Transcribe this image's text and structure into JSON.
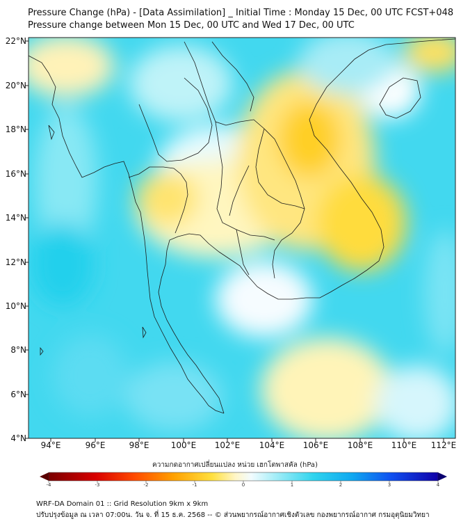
{
  "header": {
    "title_line1": "Pressure Change (hPa) - [Data Assimilation] _ Initial Time : Monday 15 Dec, 00 UTC FCST+048",
    "title_line2": "Pressure change between Mon 15 Dec, 00 UTC and Wed 17 Dec, 00 UTC"
  },
  "map": {
    "lat_labels": [
      "22°N",
      "20°N",
      "18°N",
      "16°N",
      "14°N",
      "12°N",
      "10°N",
      "8°N",
      "6°N",
      "4°N"
    ],
    "lon_labels": [
      "94°E",
      "96°E",
      "98°E",
      "100°E",
      "102°E",
      "104°E",
      "106°E",
      "108°E",
      "110°E",
      "112°E"
    ],
    "colors": {
      "pressure_rise": "#2fd8f0",
      "pressure_rise_strong": "#00c8ec",
      "neutral": "#eafaff",
      "pressure_fall": "#fff0a0",
      "pressure_fall_strong": "#ffd420",
      "border_line": "#1a1a1a"
    }
  },
  "colorbar": {
    "title": "ความกดอากาศเปลี่ยนแปลง หน่วย เฮกโตพาสคัล (hPa)",
    "tick_labels": [
      "-4",
      "-3",
      "-2",
      "-1",
      "0",
      "1",
      "2",
      "3",
      "4"
    ],
    "min": -4,
    "max": 4
  },
  "footer": {
    "line1": "WRF-DA Domain 01 :: Grid Resolution 9km x 9km",
    "line2": "ปรับปรุงข้อมูล ณ เวลา 07:00น. วัน จ. ที่ 15 ธ.ค. 2568 -- © ส่วนพยากรณ์อากาศเชิงตัวเลข กองพยากรณ์อากาศ กรมอุตุนิยมวิทยา"
  }
}
